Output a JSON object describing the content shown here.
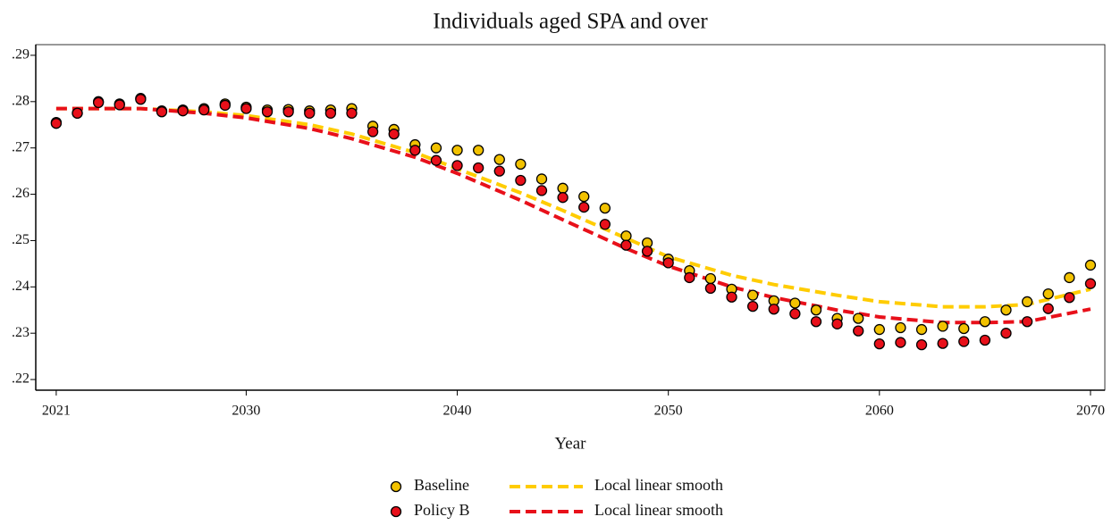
{
  "chart_data": {
    "type": "scatter",
    "title": "Individuals aged SPA and over",
    "xlabel": "Year",
    "x": [
      2021,
      2022,
      2023,
      2024,
      2025,
      2026,
      2027,
      2028,
      2029,
      2030,
      2031,
      2032,
      2033,
      2034,
      2035,
      2036,
      2037,
      2038,
      2039,
      2040,
      2041,
      2042,
      2043,
      2044,
      2045,
      2046,
      2047,
      2048,
      2049,
      2050,
      2051,
      2052,
      2053,
      2054,
      2055,
      2056,
      2057,
      2058,
      2059,
      2060,
      2061,
      2062,
      2063,
      2064,
      2065,
      2066,
      2067,
      2068,
      2069,
      2070
    ],
    "series": [
      {
        "name": "Baseline",
        "type": "scatter",
        "color": "#f2c200",
        "values": [
          0.2755,
          0.2775,
          0.28,
          0.2795,
          0.2807,
          0.278,
          0.2782,
          0.2785,
          0.2795,
          0.2788,
          0.2782,
          0.2783,
          0.278,
          0.2782,
          0.2785,
          0.2747,
          0.274,
          0.2707,
          0.27,
          0.2695,
          0.2695,
          0.2675,
          0.2665,
          0.2633,
          0.2613,
          0.2595,
          0.257,
          0.251,
          0.2495,
          0.246,
          0.2435,
          0.2418,
          0.2395,
          0.2382,
          0.237,
          0.2365,
          0.235,
          0.2332,
          0.2332,
          0.2308,
          0.2312,
          0.2308,
          0.2315,
          0.231,
          0.2325,
          0.235,
          0.2368,
          0.2385,
          0.242,
          0.2447
        ]
      },
      {
        "name": "Policy B",
        "type": "scatter",
        "color": "#e8101a",
        "values": [
          0.2753,
          0.2775,
          0.2798,
          0.2793,
          0.2805,
          0.2778,
          0.278,
          0.2782,
          0.2792,
          0.2785,
          0.2778,
          0.2778,
          0.2775,
          0.2775,
          0.2775,
          0.2735,
          0.273,
          0.2695,
          0.2673,
          0.2662,
          0.2657,
          0.265,
          0.263,
          0.2608,
          0.2593,
          0.2572,
          0.2535,
          0.249,
          0.2477,
          0.2452,
          0.242,
          0.2397,
          0.2378,
          0.2358,
          0.2352,
          0.2342,
          0.2325,
          0.232,
          0.2305,
          0.2277,
          0.228,
          0.2275,
          0.2278,
          0.2282,
          0.2285,
          0.23,
          0.2325,
          0.2353,
          0.2377,
          0.2407
        ]
      },
      {
        "name": "Local linear smooth",
        "type": "line",
        "color": "#ffcc00",
        "x": [
          2021,
          2025,
          2028,
          2030,
          2033,
          2035,
          2038,
          2040,
          2043,
          2045,
          2048,
          2050,
          2053,
          2055,
          2058,
          2060,
          2063,
          2065,
          2067,
          2070
        ],
        "values": [
          0.2785,
          0.2785,
          0.2778,
          0.277,
          0.275,
          0.273,
          0.269,
          0.2655,
          0.2603,
          0.2565,
          0.2505,
          0.2465,
          0.2425,
          0.2405,
          0.2382,
          0.2368,
          0.2357,
          0.2357,
          0.2362,
          0.2395
        ]
      },
      {
        "name": "Local linear smooth",
        "type": "line",
        "color": "#e8101a",
        "x": [
          2021,
          2025,
          2028,
          2030,
          2033,
          2035,
          2038,
          2040,
          2043,
          2045,
          2048,
          2050,
          2053,
          2055,
          2058,
          2060,
          2063,
          2065,
          2067,
          2070
        ],
        "values": [
          0.2785,
          0.2785,
          0.2775,
          0.2765,
          0.2742,
          0.272,
          0.268,
          0.2645,
          0.2587,
          0.2545,
          0.2483,
          0.2445,
          0.24,
          0.2377,
          0.235,
          0.2335,
          0.2323,
          0.2323,
          0.2325,
          0.2352
        ]
      }
    ],
    "xlim": [
      2020.03,
      2070.68
    ],
    "ylim": [
      0.2177,
      0.2923
    ],
    "xticks": [
      2021,
      2030,
      2040,
      2050,
      2060,
      2070
    ],
    "yticks": [
      {
        "value": 0.22,
        "label": ".22"
      },
      {
        "value": 0.23,
        "label": ".23"
      },
      {
        "value": 0.24,
        "label": ".24"
      },
      {
        "value": 0.25,
        "label": ".25"
      },
      {
        "value": 0.26,
        "label": ".26"
      },
      {
        "value": 0.27,
        "label": ".27"
      },
      {
        "value": 0.28,
        "label": ".28"
      },
      {
        "value": 0.29,
        "label": ".29"
      }
    ],
    "grid": false
  }
}
